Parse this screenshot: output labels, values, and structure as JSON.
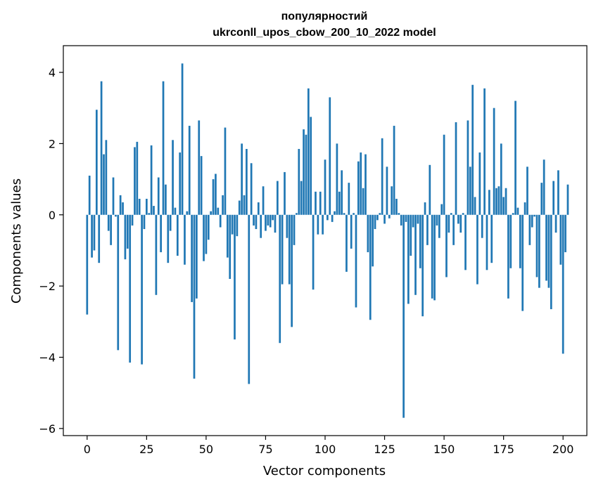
{
  "chart_data": {
    "type": "bar",
    "title_line1": "популярностий",
    "title_line2": "ukrconll_upos_cbow_200_10_2022 model",
    "xlabel": "Vector components",
    "ylabel": "Components values",
    "xlim": [
      -10,
      210
    ],
    "ylim": [
      -6.2,
      4.75
    ],
    "x_ticks": [
      0,
      25,
      50,
      75,
      100,
      125,
      150,
      175,
      200
    ],
    "y_ticks": [
      -6,
      -4,
      -2,
      0,
      2,
      4
    ],
    "y_tick_labels": [
      "−6",
      "−4",
      "−2",
      "0",
      "2",
      "4"
    ],
    "bar_color": "#1f77b4",
    "values": [
      -2.8,
      1.1,
      -1.2,
      -1.0,
      2.95,
      -1.35,
      3.75,
      1.7,
      2.1,
      -0.45,
      -0.85,
      1.05,
      -0.05,
      -3.8,
      0.55,
      0.35,
      -1.25,
      -0.95,
      -4.15,
      -0.3,
      1.9,
      2.05,
      0.45,
      -4.2,
      -0.4,
      0.45,
      0.05,
      1.95,
      0.25,
      -2.25,
      1.05,
      -1.05,
      3.75,
      0.85,
      -1.35,
      -0.45,
      2.1,
      0.2,
      -1.15,
      1.75,
      4.25,
      -1.4,
      0.1,
      2.5,
      -2.45,
      -4.6,
      -2.35,
      2.65,
      1.65,
      -1.3,
      -1.1,
      -0.7,
      0.1,
      1.0,
      1.15,
      0.2,
      -0.35,
      0.55,
      2.45,
      -1.2,
      -1.8,
      -0.55,
      -3.5,
      -0.6,
      0.4,
      2.0,
      0.55,
      1.85,
      -4.75,
      1.45,
      -0.3,
      -0.4,
      0.35,
      -0.65,
      0.8,
      -0.45,
      -0.3,
      -0.35,
      -0.15,
      -0.5,
      0.95,
      -3.6,
      -1.95,
      1.2,
      -0.65,
      -1.95,
      -3.15,
      -0.85,
      0.05,
      1.85,
      0.95,
      2.4,
      2.25,
      3.55,
      2.75,
      -2.1,
      0.65,
      -0.55,
      0.65,
      -0.55,
      1.55,
      -0.15,
      3.3,
      -0.2,
      0.1,
      2.0,
      0.65,
      1.25,
      0.05,
      -1.6,
      0.9,
      -0.95,
      0.05,
      -2.6,
      1.5,
      1.75,
      0.75,
      1.7,
      -1.05,
      -2.95,
      -1.45,
      -0.4,
      -0.15,
      0.05,
      2.15,
      -0.25,
      1.35,
      -0.1,
      0.8,
      2.5,
      0.45,
      0.05,
      -0.3,
      -5.7,
      -0.2,
      -2.5,
      -1.15,
      -0.35,
      -2.25,
      -0.25,
      -1.5,
      -2.85,
      0.35,
      -0.85,
      1.4,
      -2.35,
      -2.4,
      -0.3,
      -0.65,
      0.3,
      2.25,
      -1.75,
      -0.5,
      0.05,
      -0.85,
      2.6,
      -0.25,
      -0.5,
      0.05,
      -1.55,
      2.65,
      1.35,
      3.65,
      0.5,
      -1.95,
      1.75,
      -0.65,
      3.55,
      -1.55,
      0.7,
      -1.35,
      3.0,
      0.75,
      0.8,
      2.0,
      0.5,
      0.75,
      -2.35,
      -1.5,
      0.05,
      3.2,
      0.2,
      -1.5,
      -2.7,
      0.35,
      1.35,
      -0.85,
      -0.35,
      -0.05,
      -1.75,
      -2.05,
      0.9,
      1.55,
      -1.85,
      -2.05,
      -2.65,
      0.95,
      -0.5,
      1.25,
      -1.4,
      -3.9,
      -1.05,
      0.85
    ]
  }
}
